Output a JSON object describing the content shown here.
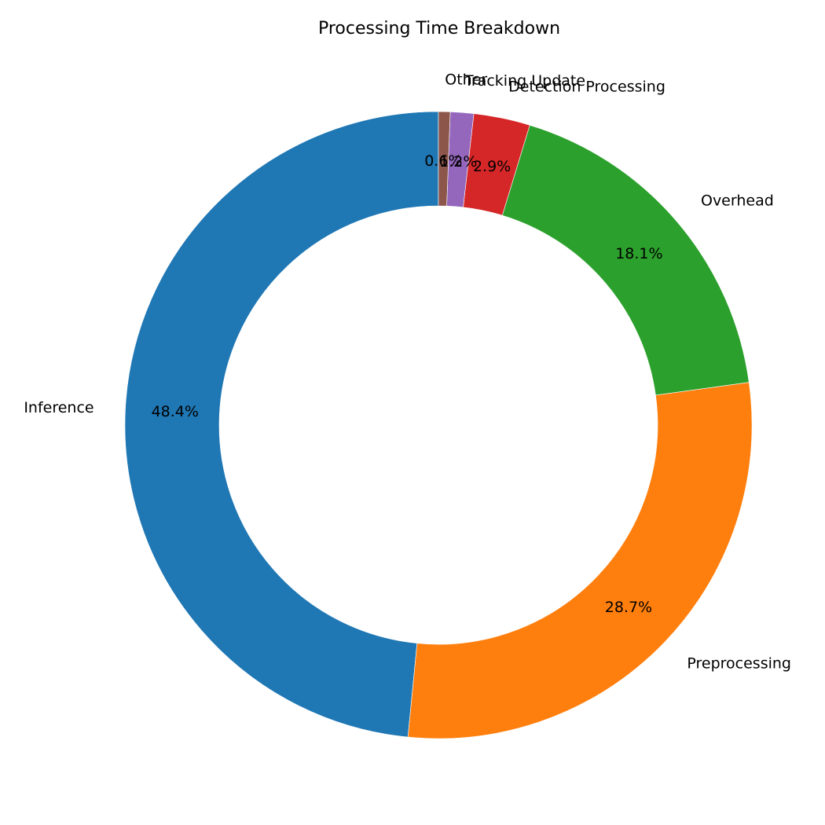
{
  "chart_data": {
    "type": "pie",
    "variant": "donut",
    "title": "Processing Time Breakdown",
    "start_angle_deg": 90,
    "direction": "counterclockwise",
    "slices": [
      {
        "label": "Inference",
        "value": 48.4,
        "pct_label": "48.4%",
        "color": "#1f77b4"
      },
      {
        "label": "Preprocessing",
        "value": 28.7,
        "pct_label": "28.7%",
        "color": "#ff7f0e"
      },
      {
        "label": "Overhead",
        "value": 18.1,
        "pct_label": "18.1%",
        "color": "#2ca02c"
      },
      {
        "label": "Detection Processing",
        "value": 2.9,
        "pct_label": "2.9%",
        "color": "#d62728"
      },
      {
        "label": "Tracking Update",
        "value": 1.2,
        "pct_label": "1.2%",
        "color": "#9467bd"
      },
      {
        "label": "Other",
        "value": 0.6,
        "pct_label": "0.6%",
        "color": "#8c564b"
      }
    ],
    "legend": "none",
    "grid": false
  }
}
